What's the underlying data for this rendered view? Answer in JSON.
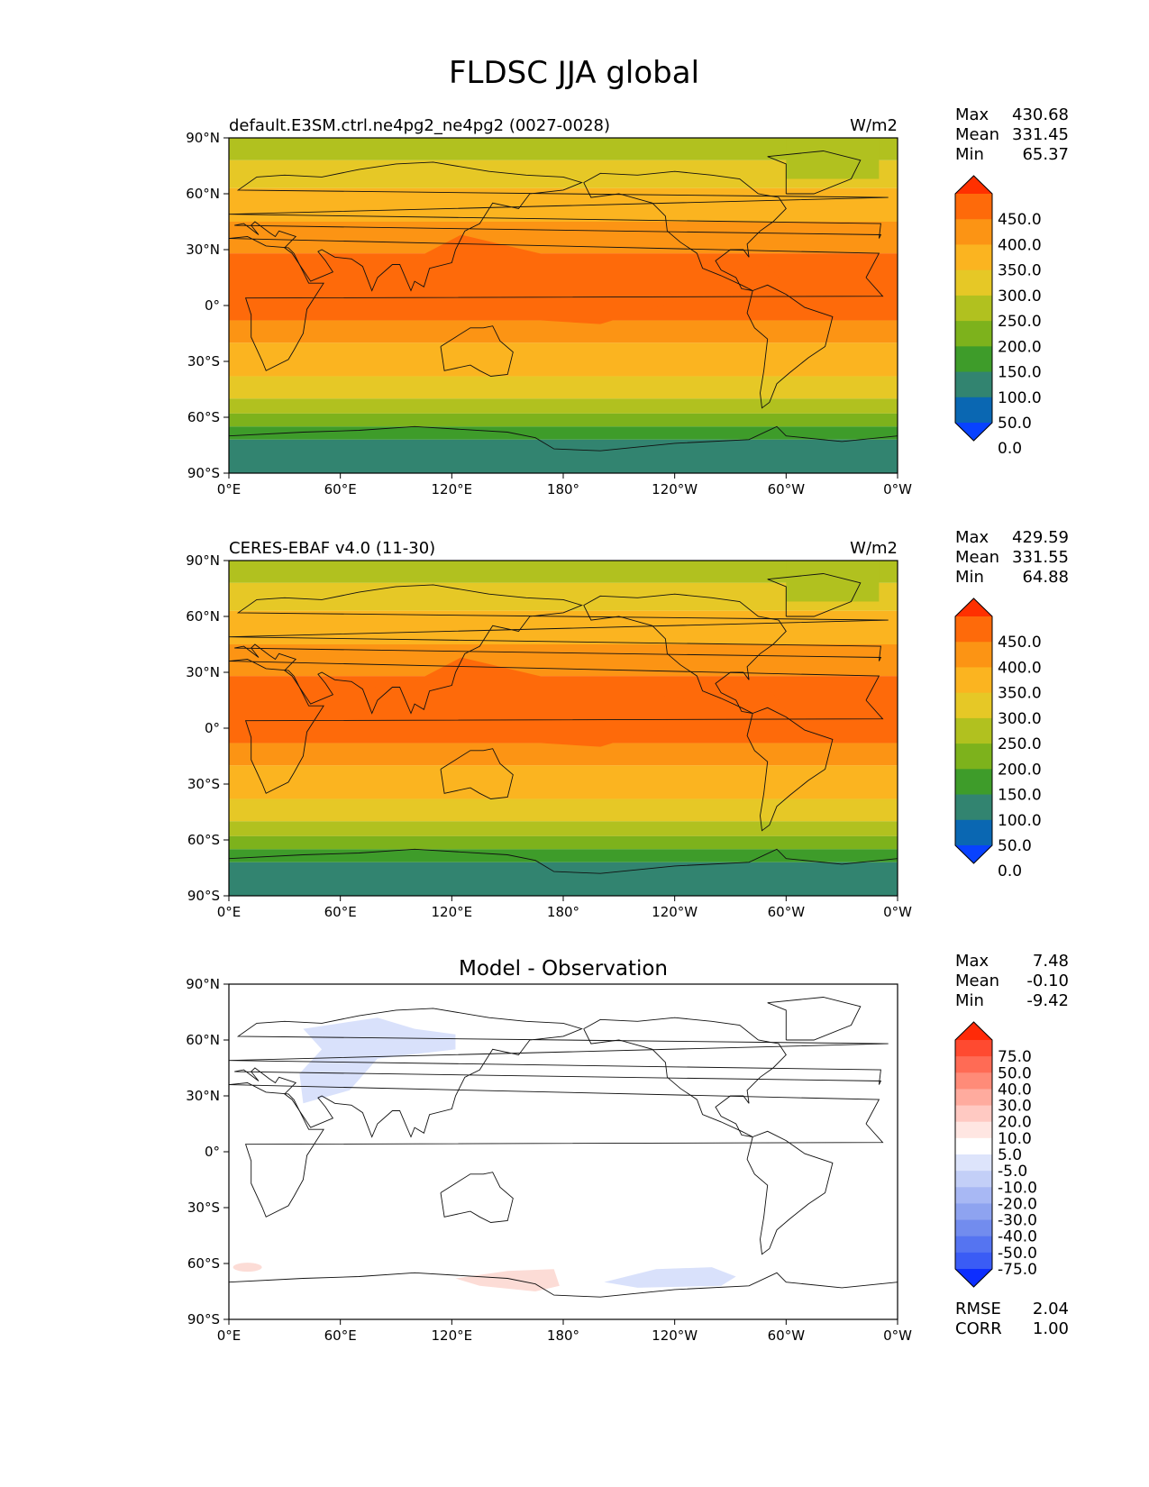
{
  "figure_title": "FLDSC JJA global",
  "lat_ticks": [
    "90°N",
    "60°N",
    "30°N",
    "0°",
    "30°S",
    "60°S",
    "90°S"
  ],
  "lon_ticks": [
    "0°E",
    "60°E",
    "120°E",
    "180°",
    "120°W",
    "60°W",
    "0°W"
  ],
  "panels": [
    {
      "id": "test",
      "title_left": "default.E3SM.ctrl.ne4pg2_ne4pg2 (0027-0028)",
      "title_center": "",
      "units": "W/m2",
      "stats": [
        {
          "label": "Max",
          "value": "430.68"
        },
        {
          "label": "Mean",
          "value": "331.45"
        },
        {
          "label": "Min",
          "value": "65.37"
        }
      ],
      "colorbar_labels": [
        "450.0",
        "400.0",
        "350.0",
        "300.0",
        "250.0",
        "200.0",
        "150.0",
        "100.0",
        "50.0",
        "0.0"
      ],
      "colorbar_colors": [
        "#ff3000",
        "#fe6a0a",
        "#fc9414",
        "#fbb420",
        "#e6c826",
        "#b1c11f",
        "#7db21c",
        "#3e9c2a",
        "#328470",
        "#0a67b2",
        "#0842ff"
      ]
    },
    {
      "id": "reference",
      "title_left": "CERES-EBAF v4.0 (11-30)",
      "title_center": "",
      "units": "W/m2",
      "stats": [
        {
          "label": "Max",
          "value": "429.59"
        },
        {
          "label": "Mean",
          "value": "331.55"
        },
        {
          "label": "Min",
          "value": "64.88"
        }
      ],
      "colorbar_labels": [
        "450.0",
        "400.0",
        "350.0",
        "300.0",
        "250.0",
        "200.0",
        "150.0",
        "100.0",
        "50.0",
        "0.0"
      ],
      "colorbar_colors": [
        "#ff3000",
        "#fe6a0a",
        "#fc9414",
        "#fbb420",
        "#e6c826",
        "#b1c11f",
        "#7db21c",
        "#3e9c2a",
        "#328470",
        "#0a67b2",
        "#0842ff"
      ]
    },
    {
      "id": "difference",
      "title_left": "",
      "title_center": "Model - Observation",
      "units": "",
      "stats": [
        {
          "label": "Max",
          "value": "7.48"
        },
        {
          "label": "Mean",
          "value": "-0.10"
        },
        {
          "label": "Min",
          "value": "-9.42"
        }
      ],
      "colorbar_labels": [
        "75.0",
        "50.0",
        "40.0",
        "30.0",
        "20.0",
        "10.0",
        "5.0",
        "-5.0",
        "-10.0",
        "-20.0",
        "-30.0",
        "-40.0",
        "-50.0",
        "-75.0"
      ],
      "colorbar_colors": [
        "#ff2a08",
        "#ff4a30",
        "#ff6b55",
        "#ff8b78",
        "#ffab9e",
        "#ffc9c2",
        "#ffe6e2",
        "#ffffff",
        "#dde4fb",
        "#c3cff7",
        "#a8b8f4",
        "#8ea3f0",
        "#728cee",
        "#5574f1",
        "#3a5cf5",
        "#0d2eff"
      ],
      "extra_stats": [
        {
          "label": "RMSE",
          "value": "2.04"
        },
        {
          "label": "CORR",
          "value": "1.00"
        }
      ]
    }
  ],
  "map_fill": {
    "bands_colors": [
      "#b1c11f",
      "#e6c826",
      "#fbb420",
      "#fc9414",
      "#fe6a0a",
      "#fc9414",
      "#fbb420",
      "#e6c826",
      "#b1c11f",
      "#7db21c",
      "#3e9c2a",
      "#328470"
    ],
    "diff_positive_color": "#fcdcd6",
    "diff_negative_color": "#d9e1fb"
  }
}
